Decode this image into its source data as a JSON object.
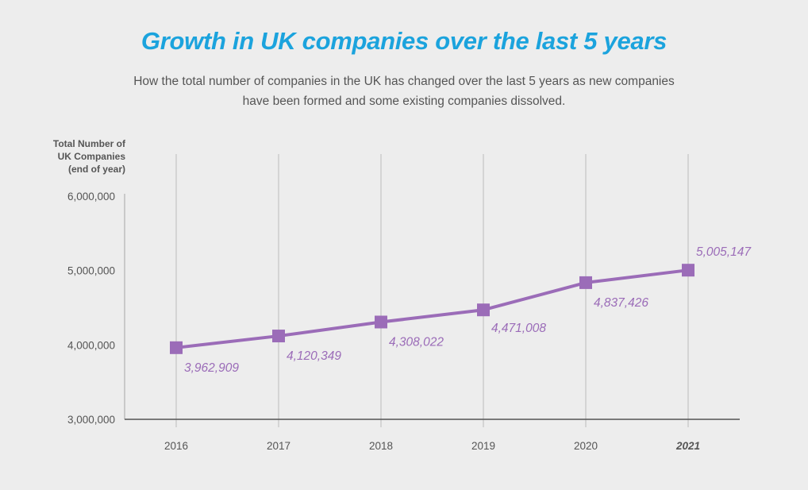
{
  "colors": {
    "title": "#1ba3dd",
    "series": "#9b6cb8",
    "axis": "#555555",
    "grid": "#c4c4c4",
    "background": "#ededed"
  },
  "chart_data": {
    "type": "line",
    "title": "Growth in UK companies over the last 5 years",
    "subtitle": [
      "How the total number of companies in the UK has changed over the last 5 years as new companies",
      "have been formed and some existing companies dissolved."
    ],
    "ylabel": [
      "Total Number of",
      "UK Companies",
      "(end of year)"
    ],
    "xlabel": "",
    "categories": [
      "2016",
      "2017",
      "2018",
      "2019",
      "2020",
      "2021"
    ],
    "series": [
      {
        "name": "Total Number of UK Companies",
        "values": [
          3962909,
          4120349,
          4308022,
          4471008,
          4837426,
          5005147
        ],
        "labels": [
          "3,962,909",
          "4,120,349",
          "4,308,022",
          "4,471,008",
          "4,837,426",
          "5,005,147"
        ],
        "marker": "square"
      }
    ],
    "ylim": [
      3000000,
      6000000
    ],
    "yticks": [
      3000000,
      4000000,
      5000000,
      6000000
    ],
    "ytick_labels": [
      "3,000,000",
      "4,000,000",
      "5,000,000",
      "6,000,000"
    ],
    "grid": "vertical",
    "highlighted_category": "2021",
    "legend": "none"
  }
}
